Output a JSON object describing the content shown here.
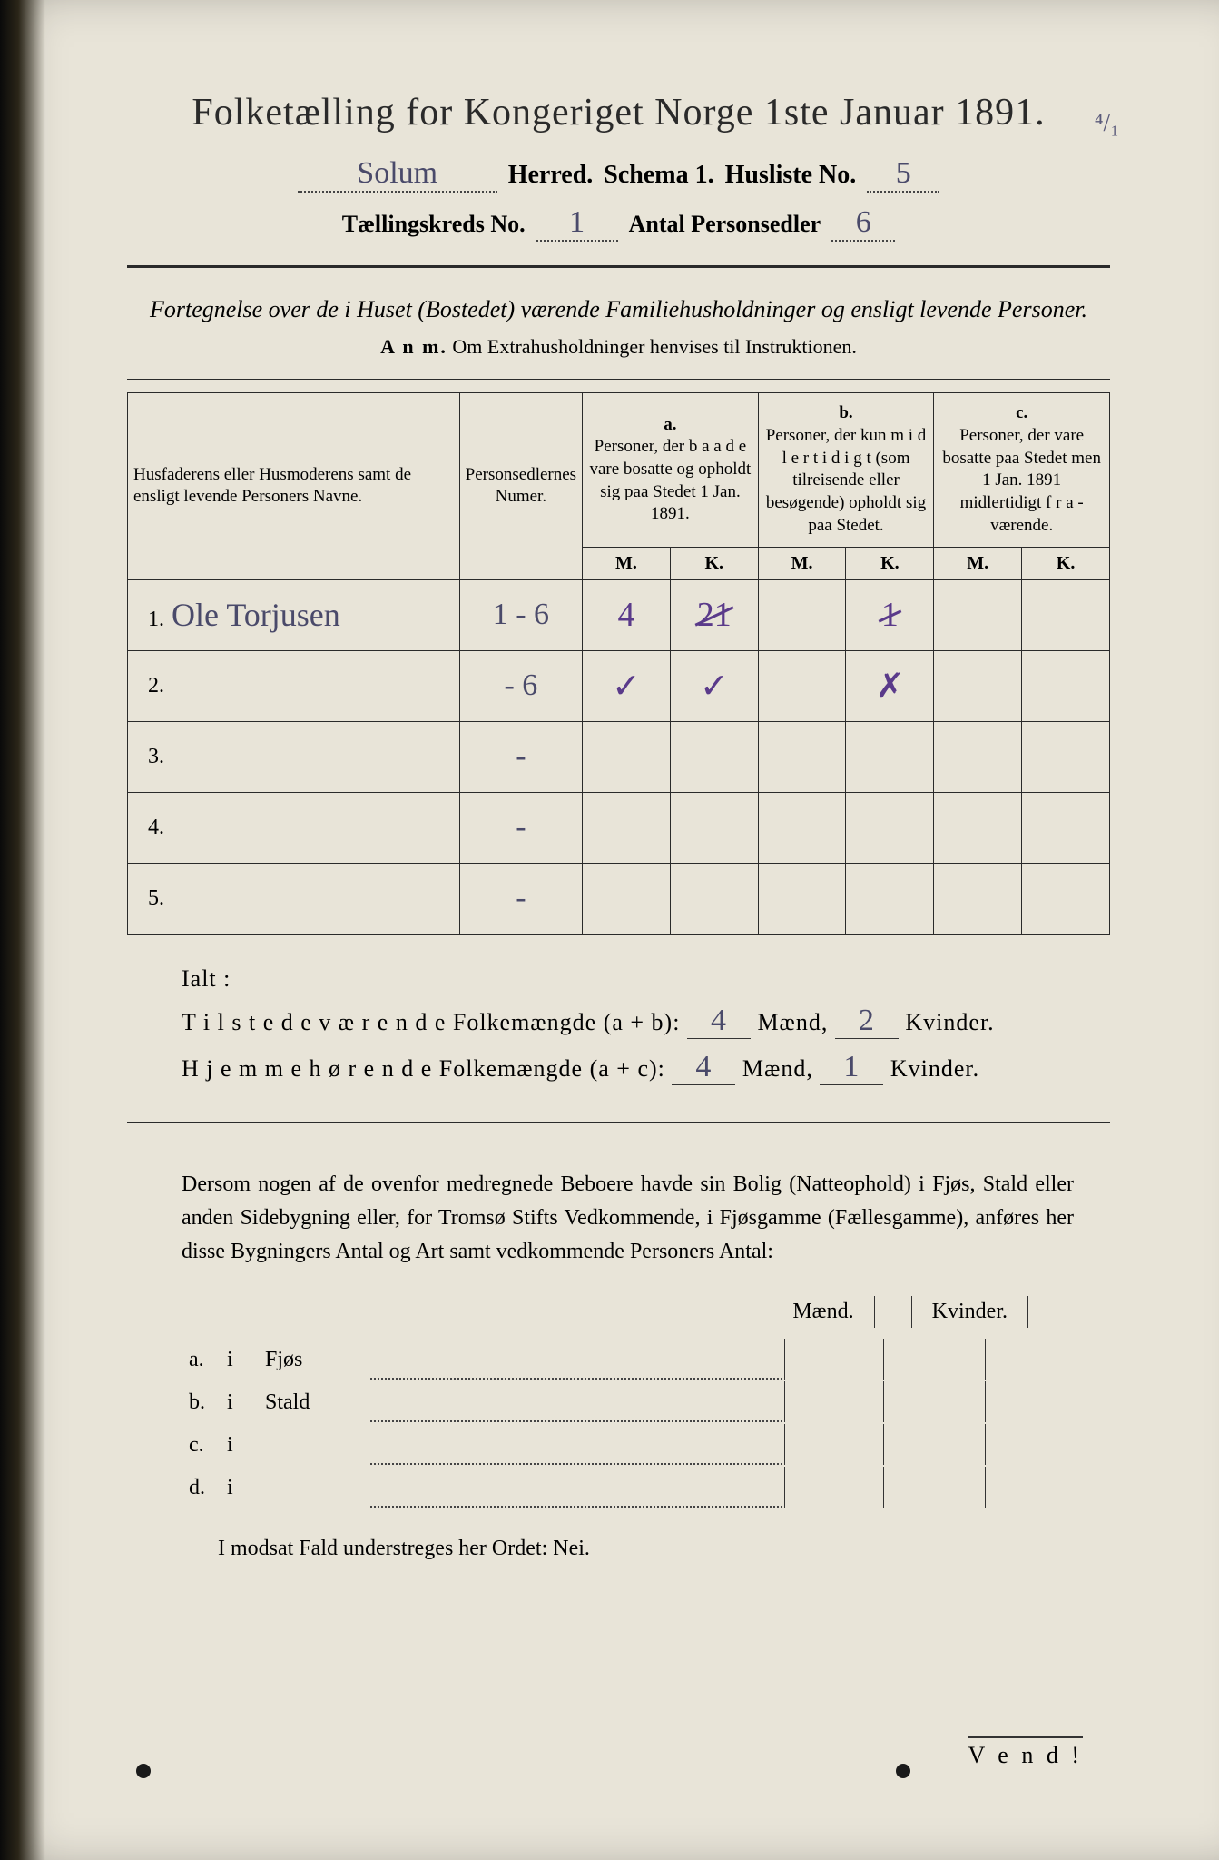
{
  "title": "Folketælling for Kongeriget Norge 1ste Januar 1891.",
  "header": {
    "herred_value": "Solum",
    "herred_label": "Herred.",
    "schema_label": "Schema 1.",
    "husliste_label": "Husliste No.",
    "husliste_value": "5",
    "corner_annot": "⁴/₁",
    "kreds_label": "Tællingskreds No.",
    "kreds_value": "1",
    "antal_label": "Antal Personsedler",
    "antal_value": "6"
  },
  "subtitle": "Fortegnelse over de i Huset (Bostedet) værende Familiehusholdninger og ensligt levende Personer.",
  "anm_label": "A n m.",
  "anm_text": "Om Extrahusholdninger henvises til Instruktionen.",
  "table": {
    "col_names": "Husfaderens eller Husmoderens samt de ensligt levende Personers Navne.",
    "col_nums": "Personsedlernes Numer.",
    "col_a_label": "a.",
    "col_a": "Personer, der b a a d e vare bosatte og opholdt sig paa Stedet 1 Jan. 1891.",
    "col_b_label": "b.",
    "col_b": "Personer, der kun m i d l e r t i d i g t (som tilreisende eller besøgende) opholdt sig paa Stedet.",
    "col_c_label": "c.",
    "col_c": "Personer, der vare bosatte paa Stedet men 1 Jan. 1891 midlertidigt f r a - værende.",
    "m": "M.",
    "k": "K.",
    "rows": [
      {
        "n": "1.",
        "name": "Ole Torjusen",
        "num": "1 - 6",
        "aM": "4",
        "aK": "21",
        "bM": "",
        "bK": "1",
        "cM": "",
        "cK": "",
        "aK_struck": true,
        "bK_struck": true
      },
      {
        "n": "2.",
        "name": "",
        "num": "- 6",
        "aM": "✓",
        "aK": "✓",
        "bM": "",
        "bK": "✗",
        "cM": "",
        "cK": ""
      },
      {
        "n": "3.",
        "name": "",
        "num": "-",
        "aM": "",
        "aK": "",
        "bM": "",
        "bK": "",
        "cM": "",
        "cK": ""
      },
      {
        "n": "4.",
        "name": "",
        "num": "-",
        "aM": "",
        "aK": "",
        "bM": "",
        "bK": "",
        "cM": "",
        "cK": ""
      },
      {
        "n": "5.",
        "name": "",
        "num": "-",
        "aM": "",
        "aK": "",
        "bM": "",
        "bK": "",
        "cM": "",
        "cK": ""
      }
    ]
  },
  "ialt": {
    "label": "Ialt :",
    "line1_a": "T i l s t e d e v æ r e n d e  Folkemængde (a + b):",
    "line1_m": "4",
    "line1_k": "2",
    "line2_a": "H j e m m e h ø r e n d e  Folkemængde (a + c):",
    "line2_m": "4",
    "line2_k": "1",
    "maend": "Mænd,",
    "kvinder": "Kvinder."
  },
  "para": "Dersom nogen af de ovenfor medregnede Beboere havde sin Bolig (Natteophold) i Fjøs, Stald eller anden Sidebygning eller, for Tromsø Stifts Vedkommende, i Fjøsgamme (Fællesgamme), anføres her disse Bygningers Antal og Art samt vedkommende Personers Antal:",
  "out": {
    "maend": "Mænd.",
    "kvinder": "Kvinder.",
    "rows": [
      {
        "l": "a.",
        "i": "i",
        "t": "Fjøs"
      },
      {
        "l": "b.",
        "i": "i",
        "t": "Stald"
      },
      {
        "l": "c.",
        "i": "i",
        "t": ""
      },
      {
        "l": "d.",
        "i": "i",
        "t": ""
      }
    ]
  },
  "nei": "I modsat Fald understreges her Ordet: Nei.",
  "vend": "V e n d !"
}
